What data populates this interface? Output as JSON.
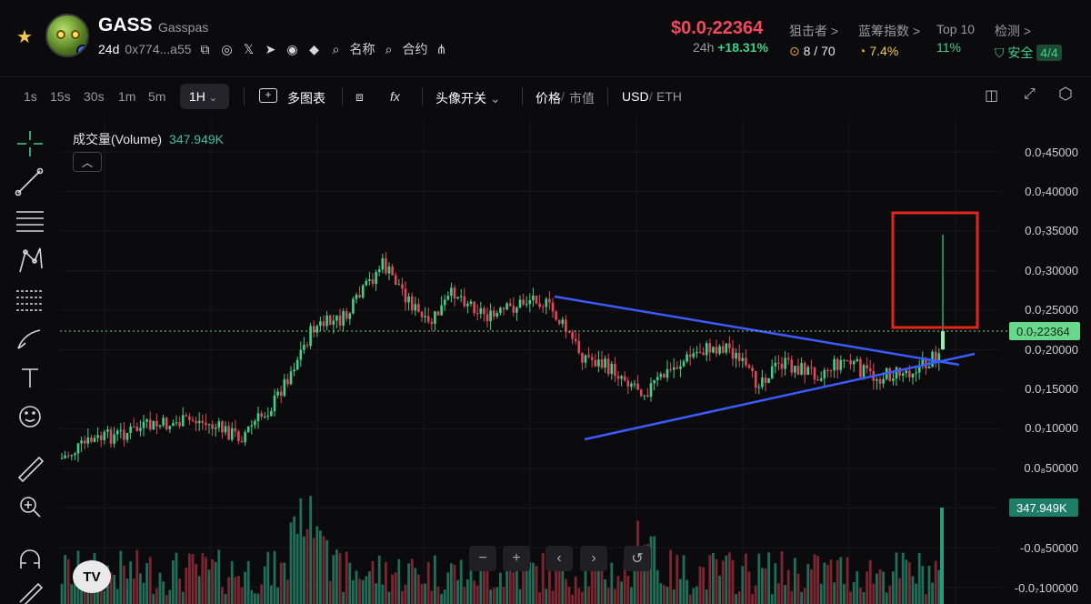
{
  "header": {
    "symbol": "GASS",
    "name": "Gasspas",
    "age": "24d",
    "address": "0x774...a55",
    "name_btn": "名称",
    "contract_btn": "合约",
    "price_prefix": "$0.0",
    "price_sub": "7",
    "price_tail": "22364",
    "change_label": "24h",
    "change_value": "+18.31%",
    "sniper_label": "狙击者 >",
    "sniper_value": "8 / 70",
    "bluechip_label": "蓝筹指数 >",
    "bluechip_value": "7.4%",
    "top10_label": "Top 10",
    "top10_value": "11%",
    "detect_label": "检测 >",
    "detect_value": "安全",
    "detect_score": "4/4"
  },
  "toolbar": {
    "intervals": [
      "1s",
      "15s",
      "30s",
      "1m",
      "5m"
    ],
    "selected_interval": "1H",
    "multi_chart": "多图表",
    "head_toggle": "头像开关",
    "price_label": "价格",
    "mcap_label": "市值",
    "usd_label": "USD",
    "eth_label": "ETH"
  },
  "legend": {
    "title": "成交量(Volume)",
    "value": "347.949K"
  },
  "yaxis": {
    "labels": [
      "0.0₇45000",
      "0.0₇40000",
      "0.0₇35000",
      "0.0₇30000",
      "0.0₇25000",
      "0.0₇20000",
      "0.0₇15000",
      "0.0₇10000",
      "0.0₈50000",
      "-0.0₈50000",
      "-0.0₇100000"
    ],
    "current": "0.0₇22364",
    "volume": "347.949K"
  },
  "chart_data": {
    "type": "candlestick",
    "ylim": [
      5e-09,
      4.5e-08
    ],
    "current_price": 2.2364e-08,
    "volume_latest": "347.949K",
    "annotations": [
      "descending trendline",
      "ascending trendline",
      "red highlight box on breakout candle"
    ]
  },
  "colors": {
    "up": "#3fd08a",
    "down": "#e2485a",
    "accent": "#f2495c",
    "trend": "#3b5bff"
  }
}
